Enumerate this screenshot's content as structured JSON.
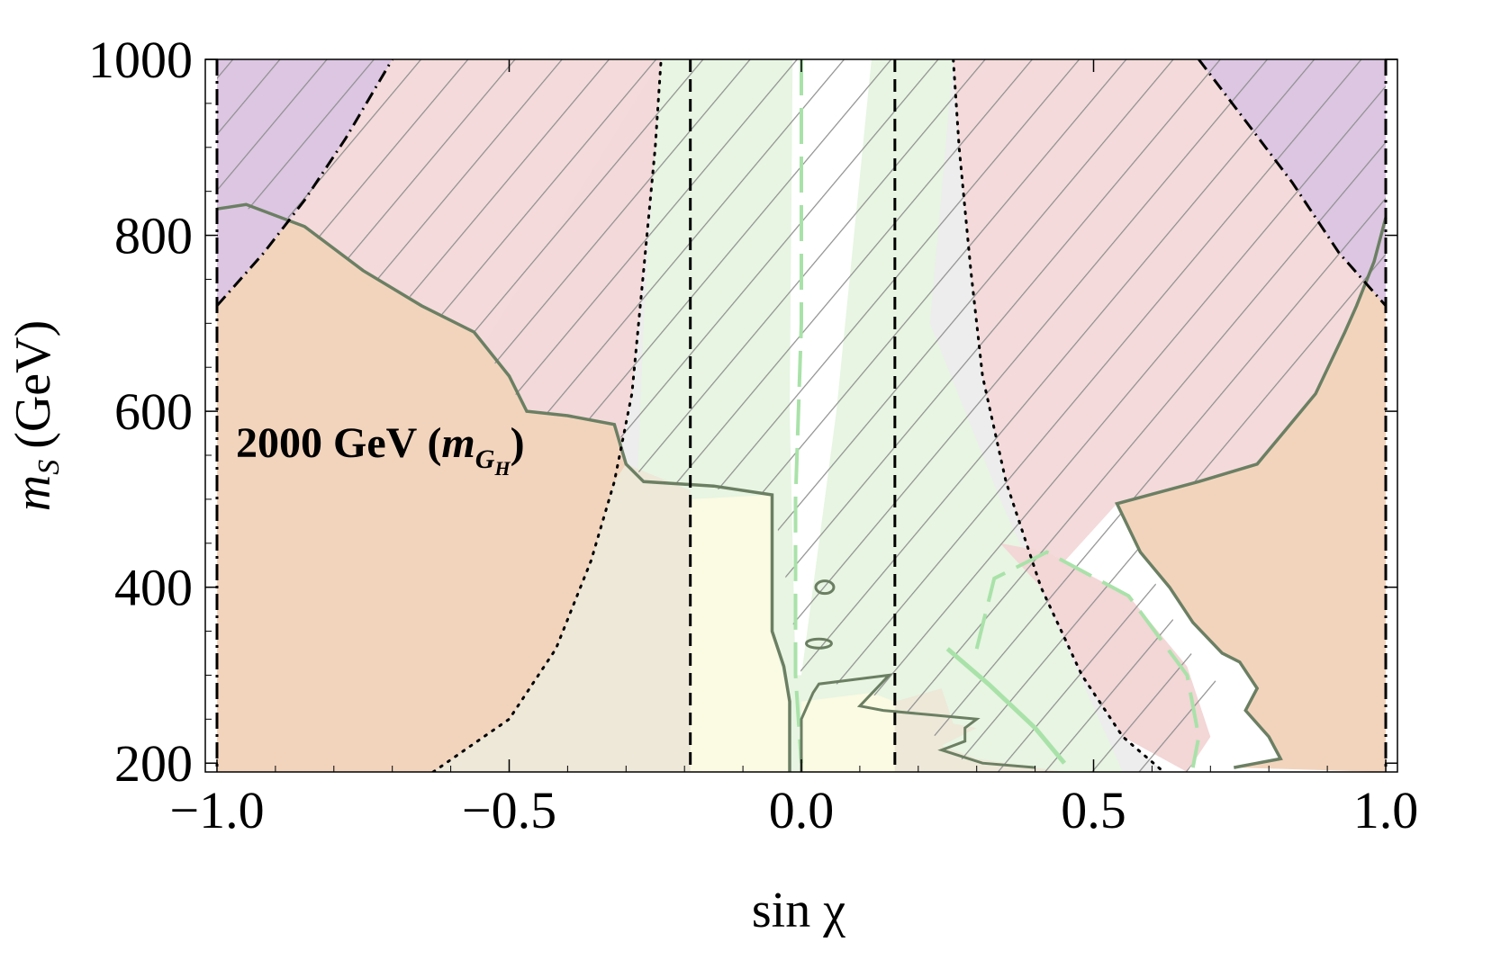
{
  "chart_data": {
    "type": "area",
    "xlabel": "sin χ",
    "ylabel_main": "m",
    "ylabel_sub": "S",
    "ylabel_units": "(GeV)",
    "xlim": [
      -1.02,
      1.02
    ],
    "ylim": [
      190,
      1000
    ],
    "x_ticks": [
      -1.0,
      -0.5,
      0.0,
      0.5,
      1.0
    ],
    "x_tick_labels": [
      "−1.0",
      "−0.5",
      "0.0",
      "0.5",
      "1.0"
    ],
    "y_ticks": [
      200,
      400,
      600,
      800,
      1000
    ],
    "y_tick_labels": [
      "200",
      "400",
      "600",
      "800",
      "1000"
    ],
    "annotation": {
      "prefix": "2000 GeV (",
      "m": "m",
      "sub": "G",
      "subsub": "H",
      "suffix": ")"
    },
    "colors": {
      "excluded_orange": "#f2d4bd",
      "excluded_pink": "#f3d6d6",
      "excluded_purple": "#dcc6e2",
      "allowed_green": "#e6f5e0",
      "allowed_yellow": "#fbfae3",
      "allowed_gray": "#ededed",
      "contour": "#6b7f63",
      "hatch": "#8e8e8e",
      "light_green_line": "#a9e2a9"
    },
    "vertical_lines": [
      {
        "style": "dashdot",
        "x": -1.0
      },
      {
        "style": "dashdot",
        "x": 1.0
      },
      {
        "style": "dashed",
        "x": -0.19
      },
      {
        "style": "dashed",
        "x": 0.16
      }
    ],
    "curves": {
      "dotdash_left": [
        [
          -1.0,
          720
        ],
        [
          -0.92,
          780
        ],
        [
          -0.85,
          840
        ],
        [
          -0.78,
          910
        ],
        [
          -0.7,
          1000
        ]
      ],
      "dotdash_right": [
        [
          0.68,
          1000
        ],
        [
          0.76,
          930
        ],
        [
          0.84,
          860
        ],
        [
          0.92,
          780
        ],
        [
          1.0,
          720
        ]
      ],
      "dotted_left": [
        [
          -0.63,
          190
        ],
        [
          -0.5,
          250
        ],
        [
          -0.42,
          330
        ],
        [
          -0.36,
          430
        ],
        [
          -0.32,
          520
        ],
        [
          -0.29,
          620
        ],
        [
          -0.27,
          760
        ],
        [
          -0.25,
          900
        ],
        [
          -0.24,
          1000
        ]
      ],
      "dotted_right": [
        [
          0.26,
          1000
        ],
        [
          0.27,
          900
        ],
        [
          0.29,
          760
        ],
        [
          0.31,
          640
        ],
        [
          0.35,
          520
        ],
        [
          0.41,
          400
        ],
        [
          0.48,
          300
        ],
        [
          0.55,
          230
        ],
        [
          0.62,
          190
        ]
      ],
      "contour_left": [
        [
          -1.0,
          830
        ],
        [
          -0.95,
          835
        ],
        [
          -0.85,
          810
        ],
        [
          -0.75,
          760
        ],
        [
          -0.65,
          720
        ],
        [
          -0.56,
          690
        ],
        [
          -0.5,
          640
        ],
        [
          -0.47,
          600
        ],
        [
          -0.4,
          595
        ],
        [
          -0.32,
          585
        ],
        [
          -0.3,
          540
        ],
        [
          -0.27,
          520
        ],
        [
          -0.15,
          515
        ],
        [
          -0.05,
          505
        ],
        [
          -0.05,
          350
        ],
        [
          -0.03,
          310
        ],
        [
          -0.02,
          270
        ],
        [
          -0.02,
          190
        ]
      ],
      "contour_right": [
        [
          1.0,
          820
        ],
        [
          0.98,
          770
        ],
        [
          0.95,
          720
        ],
        [
          0.93,
          690
        ],
        [
          0.88,
          620
        ],
        [
          0.83,
          580
        ],
        [
          0.78,
          540
        ],
        [
          0.68,
          520
        ],
        [
          0.54,
          495
        ],
        [
          0.58,
          440
        ],
        [
          0.63,
          400
        ],
        [
          0.67,
          360
        ],
        [
          0.72,
          325
        ],
        [
          0.75,
          315
        ],
        [
          0.78,
          285
        ],
        [
          0.76,
          260
        ],
        [
          0.8,
          230
        ],
        [
          0.82,
          205
        ],
        [
          0.74,
          195
        ]
      ]
    }
  }
}
